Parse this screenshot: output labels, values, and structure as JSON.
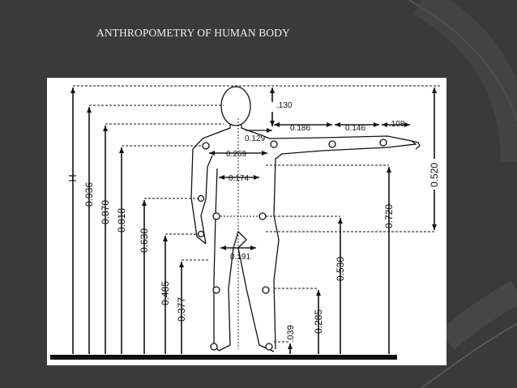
{
  "slide": {
    "title": "ANTHROPOMETRY OF HUMAN BODY"
  },
  "diagram": {
    "vertical_dimensions_left": [
      "H",
      "0.936",
      "0.870",
      "0.818",
      "0.630",
      "0.485",
      "0.377"
    ],
    "vertical_dimensions_right": [
      "0.720",
      "0.530",
      "0.285",
      ".039"
    ],
    "arm_dimensions": [
      ".130",
      "0.129",
      "0.186",
      "0.146",
      ".108",
      "0.520"
    ],
    "width_dimensions": [
      "0.259",
      "0.174",
      "0.191"
    ]
  },
  "colors": {
    "background": "#3a3a3a",
    "panel": "#ffffff",
    "ink": "#111111",
    "title": "#f0f0f0"
  }
}
